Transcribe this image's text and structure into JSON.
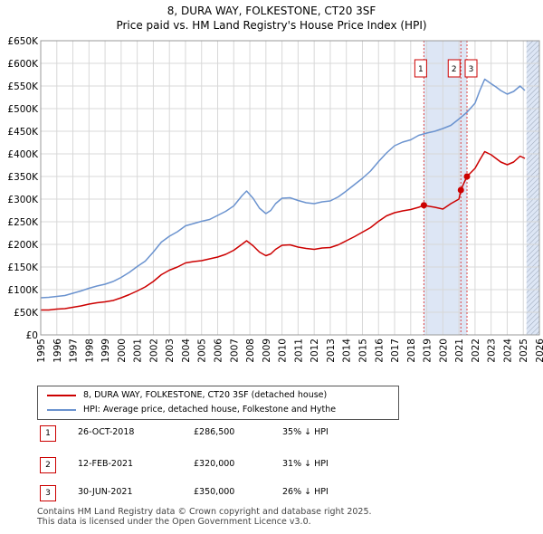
{
  "chart_data": {
    "type": "line",
    "title": "8, DURA WAY, FOLKESTONE, CT20 3SF",
    "subtitle": "Price paid vs. HM Land Registry's House Price Index (HPI)",
    "xlim": [
      1995,
      2026
    ],
    "ylim": [
      0,
      650000
    ],
    "x_ticks": [
      1995,
      1996,
      1997,
      1998,
      1999,
      2000,
      2001,
      2002,
      2003,
      2004,
      2005,
      2006,
      2007,
      2008,
      2009,
      2010,
      2011,
      2012,
      2013,
      2014,
      2015,
      2016,
      2017,
      2018,
      2019,
      2020,
      2021,
      2022,
      2023,
      2024,
      2025,
      2026
    ],
    "y_ticks": [
      {
        "value": 0,
        "label": "£0"
      },
      {
        "value": 50000,
        "label": "£50K"
      },
      {
        "value": 100000,
        "label": "£100K"
      },
      {
        "value": 150000,
        "label": "£150K"
      },
      {
        "value": 200000,
        "label": "£200K"
      },
      {
        "value": 250000,
        "label": "£250K"
      },
      {
        "value": 300000,
        "label": "£300K"
      },
      {
        "value": 350000,
        "label": "£350K"
      },
      {
        "value": 400000,
        "label": "£400K"
      },
      {
        "value": 450000,
        "label": "£450K"
      },
      {
        "value": 500000,
        "label": "£500K"
      },
      {
        "value": 550000,
        "label": "£550K"
      },
      {
        "value": 600000,
        "label": "£600K"
      },
      {
        "value": 650000,
        "label": "£650K"
      }
    ],
    "grid": true,
    "shaded_regions": [
      {
        "from": 2018.82,
        "to": 2021.5,
        "color": "#dde6f5"
      },
      {
        "from": 2025.2,
        "to": 2026,
        "color": "#dde6f5",
        "hatched": true
      }
    ],
    "series": [
      {
        "name": "HPI: Average price, detached house, Folkestone and Hythe",
        "color": "#6b93cf",
        "x": [
          1995.0,
          1995.5,
          1996.0,
          1996.5,
          1997.0,
          1997.5,
          1998.0,
          1998.5,
          1999.0,
          1999.5,
          2000.0,
          2000.5,
          2001.0,
          2001.5,
          2002.0,
          2002.5,
          2003.0,
          2003.5,
          2004.0,
          2004.5,
          2005.0,
          2005.5,
          2006.0,
          2006.5,
          2007.0,
          2007.5,
          2007.8,
          2008.2,
          2008.6,
          2009.0,
          2009.3,
          2009.6,
          2010.0,
          2010.5,
          2011.0,
          2011.5,
          2012.0,
          2012.5,
          2013.0,
          2013.5,
          2014.0,
          2014.5,
          2015.0,
          2015.5,
          2016.0,
          2016.5,
          2017.0,
          2017.5,
          2018.0,
          2018.5,
          2019.0,
          2019.5,
          2020.0,
          2020.5,
          2021.0,
          2021.5,
          2022.0,
          2022.3,
          2022.6,
          2023.0,
          2023.3,
          2023.6,
          2024.0,
          2024.4,
          2024.8,
          2025.1
        ],
        "values": [
          82000,
          83000,
          85000,
          87000,
          92000,
          97000,
          103000,
          108000,
          112000,
          118000,
          127000,
          138000,
          151000,
          163000,
          183000,
          205000,
          218000,
          228000,
          241000,
          246000,
          251000,
          255000,
          264000,
          273000,
          285000,
          307000,
          318000,
          302000,
          280000,
          268000,
          275000,
          290000,
          302000,
          303000,
          297000,
          292000,
          290000,
          294000,
          296000,
          305000,
          318000,
          332000,
          346000,
          362000,
          383000,
          402000,
          418000,
          426000,
          431000,
          441000,
          446000,
          450000,
          456000,
          463000,
          477000,
          492000,
          512000,
          540000,
          565000,
          555000,
          548000,
          540000,
          532000,
          538000,
          550000,
          540000
        ]
      },
      {
        "name": "8, DURA WAY, FOLKESTONE, CT20 3SF (detached house)",
        "color": "#cc0000",
        "x": [
          1995.0,
          1995.5,
          1996.0,
          1996.5,
          1997.0,
          1997.5,
          1998.0,
          1998.5,
          1999.0,
          1999.5,
          2000.0,
          2000.5,
          2001.0,
          2001.5,
          2002.0,
          2002.5,
          2003.0,
          2003.5,
          2004.0,
          2004.5,
          2005.0,
          2005.5,
          2006.0,
          2006.5,
          2007.0,
          2007.5,
          2007.8,
          2008.2,
          2008.6,
          2009.0,
          2009.3,
          2009.6,
          2010.0,
          2010.5,
          2011.0,
          2011.5,
          2012.0,
          2012.5,
          2013.0,
          2013.5,
          2014.0,
          2014.5,
          2015.0,
          2015.5,
          2016.0,
          2016.5,
          2017.0,
          2017.5,
          2018.0,
          2018.5,
          2018.82,
          2019.0,
          2019.5,
          2020.0,
          2020.5,
          2021.0,
          2021.12,
          2021.3,
          2021.5,
          2022.0,
          2022.3,
          2022.6,
          2023.0,
          2023.3,
          2023.6,
          2024.0,
          2024.4,
          2024.8,
          2025.1
        ],
        "values": [
          55000,
          55000,
          57000,
          58000,
          61000,
          64000,
          68000,
          71000,
          73000,
          76000,
          82000,
          89000,
          97000,
          106000,
          118000,
          133000,
          143000,
          150000,
          159000,
          162000,
          164000,
          168000,
          172000,
          178000,
          187000,
          200000,
          208000,
          197000,
          183000,
          175000,
          179000,
          189000,
          198000,
          199000,
          194000,
          191000,
          189000,
          192000,
          193000,
          199000,
          208000,
          217000,
          227000,
          237000,
          251000,
          263000,
          270000,
          274000,
          277000,
          282000,
          286500,
          285000,
          282000,
          278000,
          290000,
          300000,
          320000,
          335000,
          350000,
          368000,
          387000,
          405000,
          398000,
          390000,
          382000,
          376000,
          382000,
          395000,
          390000
        ]
      }
    ],
    "sale_markers": [
      {
        "id": "1",
        "x": 2018.82,
        "value": 286500
      },
      {
        "id": "2",
        "x": 2021.12,
        "value": 320000
      },
      {
        "id": "3",
        "x": 2021.5,
        "value": 350000
      }
    ]
  },
  "legend": {
    "property": "8, DURA WAY, FOLKESTONE, CT20 3SF (detached house)",
    "hpi": "HPI: Average price, detached house, Folkestone and Hythe",
    "property_color": "#cc0000",
    "hpi_color": "#6b93cf"
  },
  "sales": [
    {
      "num": "1",
      "date": "26-OCT-2018",
      "price": "£286,500",
      "hpi": "35% ↓ HPI"
    },
    {
      "num": "2",
      "date": "12-FEB-2021",
      "price": "£320,000",
      "hpi": "31% ↓ HPI"
    },
    {
      "num": "3",
      "date": "30-JUN-2021",
      "price": "£350,000",
      "hpi": "26% ↓ HPI"
    }
  ],
  "footer": {
    "line1": "Contains HM Land Registry data © Crown copyright and database right 2025.",
    "line2": "This data is licensed under the Open Government Licence v3.0."
  }
}
